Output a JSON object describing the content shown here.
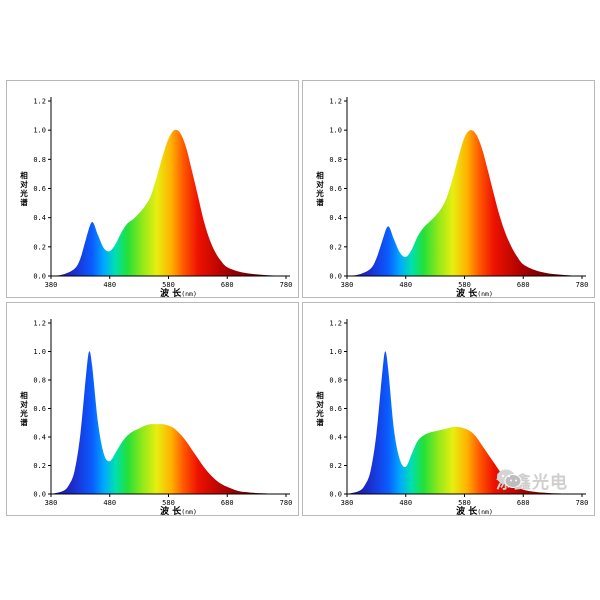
{
  "chart_data": [
    {
      "type": "area",
      "ylabel": "相对光谱",
      "xlabel_main": "波 长",
      "xlabel_unit": "(nm)",
      "x_ticks": [
        "380",
        "480",
        "580",
        "680",
        "780"
      ],
      "y_ticks": [
        "0.0",
        "0.2",
        "0.4",
        "0.6",
        "0.8",
        "1.0",
        "1.2"
      ],
      "xlim": [
        380,
        780
      ],
      "ylim": [
        0,
        1.2
      ],
      "x": [
        380,
        400,
        420,
        430,
        440,
        450,
        460,
        470,
        480,
        490,
        500,
        510,
        520,
        530,
        540,
        550,
        560,
        570,
        580,
        590,
        600,
        610,
        620,
        630,
        640,
        650,
        660,
        670,
        680,
        700,
        720,
        740,
        760,
        780
      ],
      "values": [
        0.0,
        0.01,
        0.05,
        0.12,
        0.26,
        0.37,
        0.28,
        0.19,
        0.17,
        0.22,
        0.3,
        0.36,
        0.39,
        0.43,
        0.48,
        0.55,
        0.68,
        0.82,
        0.94,
        1.0,
        0.98,
        0.88,
        0.72,
        0.55,
        0.38,
        0.25,
        0.16,
        0.1,
        0.06,
        0.03,
        0.015,
        0.008,
        0.003,
        0.0
      ]
    },
    {
      "type": "area",
      "ylabel": "相对光谱",
      "xlabel_main": "波 长",
      "xlabel_unit": "(nm)",
      "x_ticks": [
        "380",
        "480",
        "580",
        "680",
        "780"
      ],
      "y_ticks": [
        "0.0",
        "0.2",
        "0.4",
        "0.6",
        "0.8",
        "1.0",
        "1.2"
      ],
      "xlim": [
        380,
        780
      ],
      "ylim": [
        0,
        1.2
      ],
      "x": [
        380,
        400,
        420,
        430,
        440,
        450,
        460,
        470,
        480,
        490,
        500,
        510,
        520,
        530,
        540,
        550,
        560,
        570,
        580,
        590,
        600,
        610,
        620,
        630,
        640,
        650,
        660,
        670,
        680,
        700,
        720,
        740,
        760,
        780
      ],
      "values": [
        0.0,
        0.01,
        0.05,
        0.12,
        0.24,
        0.34,
        0.25,
        0.16,
        0.13,
        0.18,
        0.27,
        0.33,
        0.37,
        0.41,
        0.46,
        0.54,
        0.67,
        0.82,
        0.95,
        1.0,
        0.97,
        0.87,
        0.72,
        0.56,
        0.41,
        0.29,
        0.2,
        0.13,
        0.08,
        0.04,
        0.02,
        0.01,
        0.004,
        0.0
      ]
    },
    {
      "type": "area",
      "ylabel": "相对光谱",
      "xlabel_main": "波 长",
      "xlabel_unit": "(nm)",
      "x_ticks": [
        "380",
        "480",
        "580",
        "680",
        "780"
      ],
      "y_ticks": [
        "0.0",
        "0.2",
        "0.4",
        "0.6",
        "0.8",
        "1.0",
        "1.2"
      ],
      "xlim": [
        380,
        780
      ],
      "ylim": [
        0,
        1.2
      ],
      "x": [
        380,
        400,
        410,
        420,
        430,
        440,
        445,
        450,
        460,
        470,
        480,
        490,
        500,
        510,
        520,
        530,
        540,
        550,
        560,
        570,
        580,
        590,
        600,
        610,
        620,
        630,
        640,
        650,
        660,
        670,
        680,
        700,
        720,
        740,
        760,
        780
      ],
      "values": [
        0.0,
        0.02,
        0.06,
        0.16,
        0.42,
        0.85,
        1.0,
        0.9,
        0.5,
        0.28,
        0.23,
        0.29,
        0.36,
        0.41,
        0.44,
        0.46,
        0.48,
        0.49,
        0.49,
        0.49,
        0.48,
        0.46,
        0.42,
        0.37,
        0.31,
        0.25,
        0.19,
        0.14,
        0.1,
        0.07,
        0.05,
        0.02,
        0.01,
        0.005,
        0.002,
        0.0
      ]
    },
    {
      "type": "area",
      "ylabel": "相对光谱",
      "xlabel_main": "波 长",
      "xlabel_unit": "(nm)",
      "x_ticks": [
        "380",
        "480",
        "580",
        "680",
        "780"
      ],
      "y_ticks": [
        "0.0",
        "0.2",
        "0.4",
        "0.6",
        "0.8",
        "1.0",
        "1.2"
      ],
      "xlim": [
        380,
        780
      ],
      "ylim": [
        0,
        1.2
      ],
      "x": [
        380,
        400,
        410,
        420,
        430,
        440,
        445,
        450,
        460,
        470,
        480,
        490,
        500,
        510,
        520,
        530,
        540,
        550,
        560,
        570,
        580,
        590,
        600,
        610,
        620,
        630,
        640,
        650,
        660,
        670,
        680,
        700,
        720,
        740,
        760,
        780
      ],
      "values": [
        0.0,
        0.02,
        0.06,
        0.16,
        0.42,
        0.85,
        1.0,
        0.88,
        0.45,
        0.24,
        0.19,
        0.28,
        0.37,
        0.41,
        0.43,
        0.44,
        0.45,
        0.46,
        0.47,
        0.47,
        0.46,
        0.44,
        0.4,
        0.34,
        0.28,
        0.22,
        0.16,
        0.11,
        0.07,
        0.05,
        0.03,
        0.015,
        0.008,
        0.004,
        0.001,
        0.0
      ]
    }
  ],
  "watermark": {
    "text": "添鑫光电",
    "icon": "wechat-icon"
  }
}
